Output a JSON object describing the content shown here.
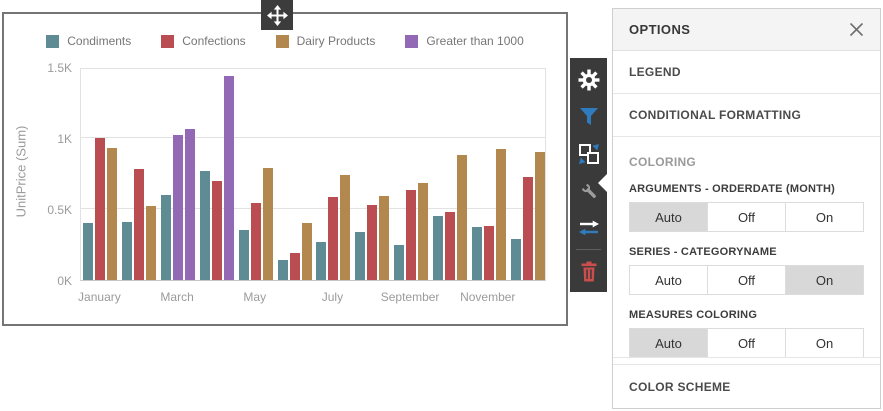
{
  "chart_panel": {
    "legend_items": [
      {
        "label": "Condiments",
        "color": "#5f8b95"
      },
      {
        "label": "Confections",
        "color": "#ba4d51"
      },
      {
        "label": "Dairy Products",
        "color": "#b3884f"
      },
      {
        "label": "Greater than 1000",
        "color": "#9368b5"
      }
    ],
    "y_axis_title": "UnitPrice (Sum)",
    "y_ticks": [
      {
        "label": "1.5K",
        "value": 1500
      },
      {
        "label": "1K",
        "value": 1000
      },
      {
        "label": "0.5K",
        "value": 500
      },
      {
        "label": "0K",
        "value": 0
      }
    ],
    "x_tick_labels": [
      "January",
      "March",
      "May",
      "July",
      "September",
      "November"
    ]
  },
  "chart_data": {
    "type": "bar",
    "title": "",
    "xlabel": "",
    "ylabel": "UnitPrice (Sum)",
    "ylim": [
      0,
      1500
    ],
    "grid": true,
    "legend_position": "top",
    "categories": [
      "January",
      "February",
      "March",
      "April",
      "May",
      "June",
      "July",
      "August",
      "September",
      "October",
      "November",
      "December"
    ],
    "series": [
      {
        "name": "Condiments",
        "color": "#5f8b95",
        "values": [
          400,
          410,
          600,
          770,
          350,
          140,
          270,
          340,
          245,
          450,
          375,
          290
        ]
      },
      {
        "name": "Confections",
        "color": "#ba4d51",
        "values": [
          1000,
          780,
          1020,
          700,
          540,
          190,
          585,
          530,
          635,
          480,
          380,
          725
        ]
      },
      {
        "name": "Dairy Products",
        "color": "#b3884f",
        "values": [
          930,
          520,
          1060,
          1440,
          790,
          400,
          740,
          590,
          685,
          880,
          920,
          905
        ]
      }
    ],
    "conditional_formatting": {
      "rule": "value > 1000",
      "label": "Greater than 1000",
      "color": "#9368b5"
    }
  },
  "toolbar": {
    "icons": [
      "settings-gear",
      "filter",
      "convert",
      "options-wrench",
      "swap-arrows",
      "delete"
    ],
    "active": "options-wrench",
    "colors": {
      "background": "#3a3a3a",
      "accent_blue": "#2e7cbe",
      "delete_red": "#cb4e4c",
      "wrench_gray": "#9d9d9d"
    }
  },
  "options_panel": {
    "title": "OPTIONS",
    "sections": [
      {
        "label": "LEGEND"
      },
      {
        "label": "CONDITIONAL FORMATTING"
      }
    ],
    "coloring": {
      "group_label": "COLORING",
      "settings": [
        {
          "label": "ARGUMENTS - ORDERDATE (MONTH)",
          "options": [
            "Auto",
            "Off",
            "On"
          ],
          "selected": "Auto"
        },
        {
          "label": "SERIES - CATEGORYNAME",
          "options": [
            "Auto",
            "Off",
            "On"
          ],
          "selected": "On"
        },
        {
          "label": "MEASURES COLORING",
          "options": [
            "Auto",
            "Off",
            "On"
          ],
          "selected": "Auto"
        }
      ]
    },
    "footer_section": {
      "label": "COLOR SCHEME"
    }
  }
}
